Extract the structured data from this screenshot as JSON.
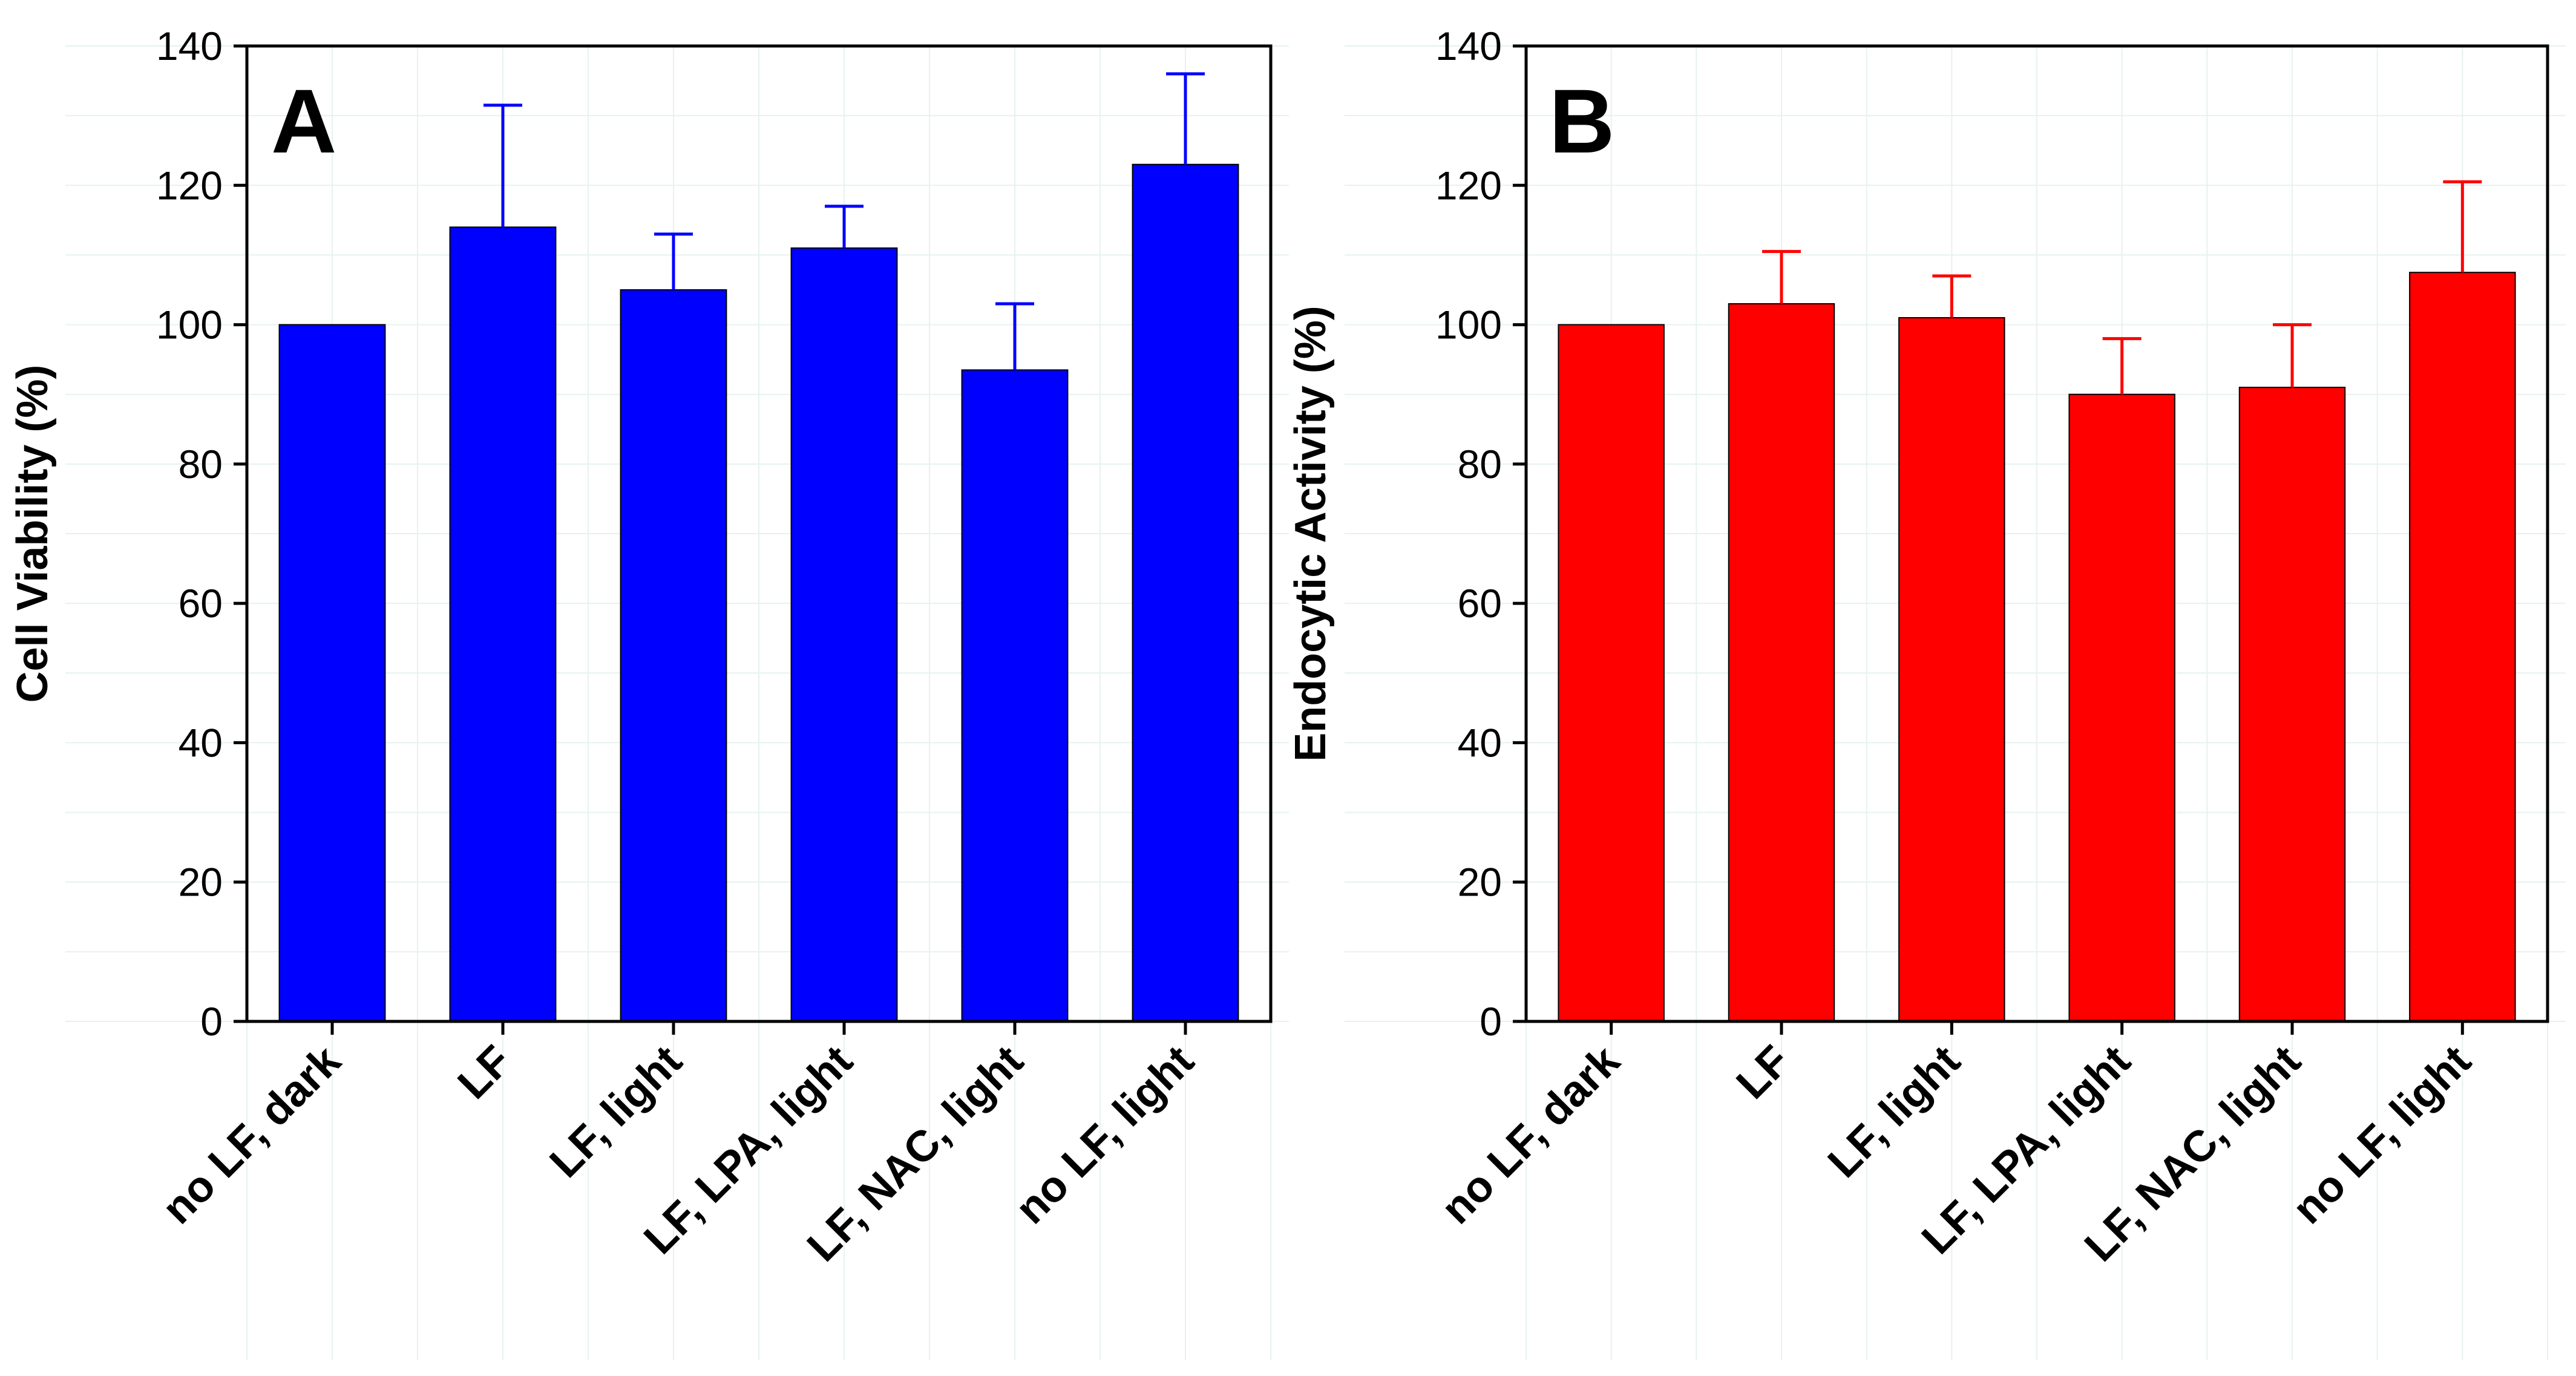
{
  "chart_data": [
    {
      "type": "bar",
      "panel_label": "A",
      "ylabel": "Cell Viability (%)",
      "xlabel": "",
      "ylim": [
        0,
        140
      ],
      "yticks": [
        0,
        20,
        40,
        60,
        80,
        100,
        120,
        140
      ],
      "categories": [
        "no LF, dark",
        "LF",
        "LF, light",
        "LF, LPA, light",
        "LF, NAC, light",
        "no LF, light"
      ],
      "values": [
        100,
        114,
        105,
        111,
        93.5,
        123
      ],
      "errors": [
        0,
        17.5,
        8,
        6,
        9.5,
        13
      ],
      "color": "#0000FF",
      "grid": true
    },
    {
      "type": "bar",
      "panel_label": "B",
      "ylabel": "Endocytic Activity (%)",
      "xlabel": "",
      "ylim": [
        0,
        140
      ],
      "yticks": [
        0,
        20,
        40,
        60,
        80,
        100,
        120,
        140
      ],
      "categories": [
        "no LF, dark",
        "LF",
        "LF, light",
        "LF, LPA, light",
        "LF, NAC, light",
        "no LF, light"
      ],
      "values": [
        100,
        103,
        101,
        90,
        91,
        107.5
      ],
      "errors": [
        0,
        7.5,
        6,
        8,
        9,
        13
      ],
      "color": "#FF0000",
      "grid": true
    }
  ]
}
